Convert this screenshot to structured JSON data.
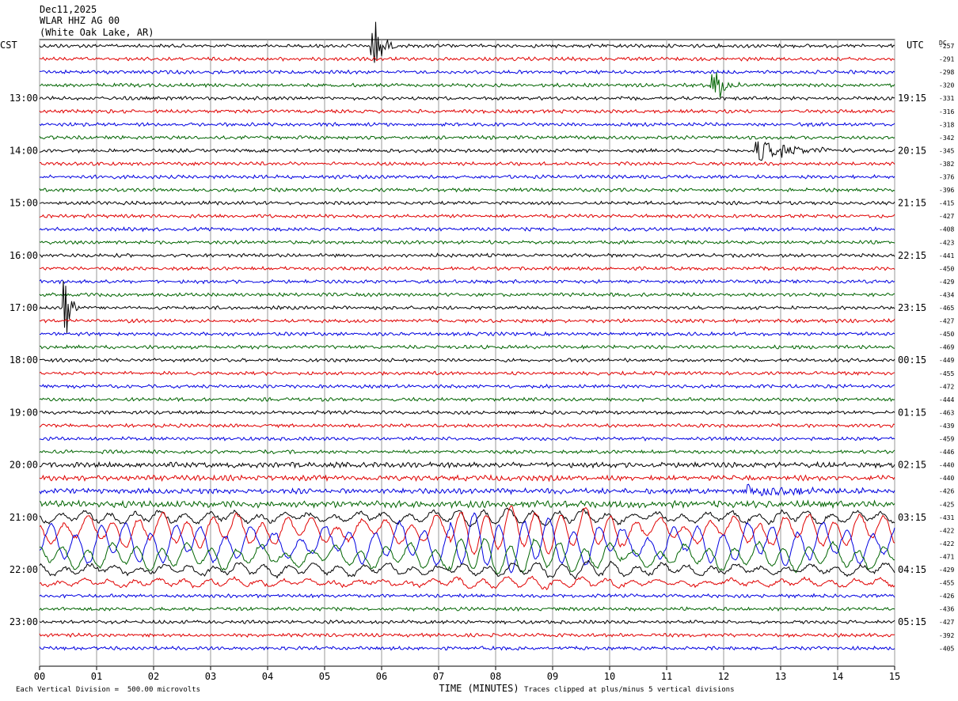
{
  "header": {
    "line1": "Dec11,2025",
    "line2": "WLAR HHZ AG 00",
    "line3": "(White Oak Lake, AR)"
  },
  "left_zone": "CST",
  "right_zone": "UTC",
  "dc_label": "DC",
  "footer": {
    "scale": "Each Vertical Division =  500.00 microvolts",
    "clip": "Traces clipped at plus/minus 5 vertical divisions",
    "xlabel": "TIME (MINUTES)"
  },
  "chart_data": {
    "type": "line",
    "xlabel": "TIME (MINUTES)",
    "x_range": [
      0,
      15
    ],
    "x_ticks": [
      "00",
      "01",
      "02",
      "03",
      "04",
      "05",
      "06",
      "07",
      "08",
      "09",
      "10",
      "11",
      "12",
      "13",
      "14",
      "15"
    ],
    "trace_colors": [
      "#000000",
      "#e00000",
      "#0000e0",
      "#006400"
    ],
    "traces_per_hour": 4,
    "left_hour_labels": [
      "13:00",
      "14:00",
      "15:00",
      "16:00",
      "17:00",
      "18:00",
      "19:00",
      "20:00",
      "21:00",
      "22:00",
      "23:00"
    ],
    "right_hour_labels": [
      "19:15",
      "20:15",
      "21:15",
      "22:15",
      "23:15",
      "00:15",
      "01:15",
      "02:15",
      "03:15",
      "04:15",
      "05:15"
    ],
    "dc_offsets": [
      -257,
      -291,
      -298,
      -320,
      -331,
      -316,
      -318,
      -342,
      -345,
      -382,
      -376,
      -396,
      -415,
      -427,
      -408,
      -423,
      -441,
      -450,
      -429,
      -434,
      -465,
      -427,
      -450,
      -469,
      -449,
      -455,
      -472,
      -444,
      -463,
      -439,
      -459,
      -446,
      -440,
      -440,
      -426,
      -425,
      -431,
      -422,
      -422,
      -471,
      -429,
      -455,
      -426,
      -436,
      -427,
      -392,
      -405
    ],
    "events": [
      {
        "trace": 0,
        "minute": 5.85,
        "amplitude": 5,
        "duration": 0.4
      },
      {
        "trace": 3,
        "minute": 11.8,
        "amplitude": 3,
        "duration": 0.6
      },
      {
        "trace": 8,
        "minute": 12.6,
        "amplitude": 1.6,
        "duration": 1.8
      },
      {
        "trace": 20,
        "minute": 0.45,
        "amplitude": 5,
        "duration": 0.3
      },
      {
        "trace": 34,
        "minute": 12.4,
        "amplitude": 1.2,
        "duration": 2.2
      }
    ]
  }
}
